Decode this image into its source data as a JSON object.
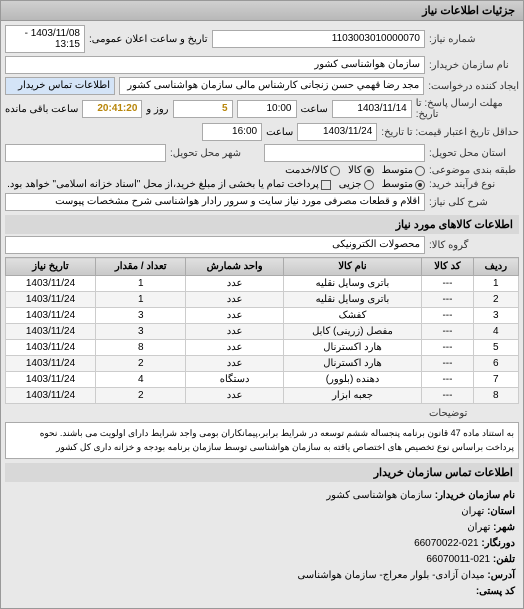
{
  "panel_title": "جزئیات اطلاعات نیاز",
  "header": {
    "request_no_label": "شماره نیاز:",
    "request_no": "1103003010000070",
    "announce_label": "تاریخ و ساعت اعلان عمومی:",
    "announce_value": "1403/11/08 - 13:15",
    "buyer_org_label": "نام سازمان خریدار:",
    "buyer_org": "سازمان هواشناسی کشور",
    "requester_label": "ایجاد کننده درخواست:",
    "requester": "مجد رضا قهمي حسن زنجانی کارشناس مالی سازمان هواشناسی کشور",
    "contact_btn": "اطلاعات تماس خریدار",
    "deadline_send_label": "مهلت ارسال پاسخ: تا تاریخ:",
    "deadline_send_date": "1403/11/14",
    "time_label": "ساعت",
    "deadline_send_time": "10:00",
    "days_label": "روز و",
    "days": "5",
    "remaining_label": "ساعت باقی مانده",
    "remaining": "20:41:20",
    "validity_label": "حداقل تاریخ اعتبار قیمت: تا تاریخ:",
    "validity_date": "1403/11/24",
    "validity_time": "16:00",
    "delivery_state_label": "استان محل تحویل:",
    "delivery_city_label": "شهر محل تحویل:",
    "budget_label": "طبقه بندی موضوعی:",
    "budget_options": [
      "متوسط",
      "کالا",
      "کالا/خدمت"
    ],
    "process_label": "نوع فرآیند خرید:",
    "process_options": [
      "متوسط",
      "جزیی"
    ],
    "payment_note": "پرداخت تمام یا بخشی از مبلغ خرید،از محل \"اسناد خزانه اسلامی\" خواهد بود.",
    "desc_label": "شرح کلی نیاز:",
    "desc": "اقلام و قطعات مصرفی مورد نیاز سایت و سرور رادار هواشناسی شرح مشخصات پیوست"
  },
  "goods": {
    "section": "اطلاعات کالاهای مورد نیاز",
    "group_label": "گروه کالا:",
    "group": "محصولات الکترونیکی",
    "columns": [
      "ردیف",
      "کد کالا",
      "نام کالا",
      "واحد شمارش",
      "تعداد / مقدار",
      "تاریخ نیاز"
    ],
    "rows": [
      [
        "1",
        "---",
        "باتری وسایل نقلیه",
        "عدد",
        "1",
        "1403/11/24"
      ],
      [
        "2",
        "---",
        "باتری وسایل نقلیه",
        "عدد",
        "1",
        "1403/11/24"
      ],
      [
        "3",
        "---",
        "کفشک",
        "عدد",
        "3",
        "1403/11/24"
      ],
      [
        "4",
        "---",
        "مفصل (زرینی) کابل",
        "عدد",
        "3",
        "1403/11/24"
      ],
      [
        "5",
        "---",
        "هارد اکسترنال",
        "عدد",
        "8",
        "1403/11/24"
      ],
      [
        "6",
        "---",
        "هارد اکسترنال",
        "عدد",
        "2",
        "1403/11/24"
      ],
      [
        "7",
        "---",
        "دهنده (بلوور)",
        "دستگاه",
        "4",
        "1403/11/24"
      ],
      [
        "8",
        "---",
        "جعبه ابزار",
        "عدد",
        "2",
        "1403/11/24"
      ]
    ]
  },
  "notes": {
    "label": "توضیحات",
    "text": "به استناد ماده 47 قانون برنامه پنجساله ششم توسعه در شرایط برابر،پیمانکاران بومی واجد شرایط دارای اولویت می باشند. نحوه پرداخت براساس نوع تخصیص های اختصاص یافته به سازمان هواشناسی توسط سازمان برنامه بودجه و خزانه داری کل کشور"
  },
  "contact": {
    "section": "اطلاعات تماس سازمان خریدار",
    "org_label": "نام سازمان خریدار:",
    "org": "سازمان هواشناسی کشور",
    "state_label": "استان:",
    "state": "تهران",
    "city_label": "شهر:",
    "city": "تهران",
    "fax_label": "دورنگار:",
    "fax": "021-66070022",
    "tel_label": "تلفن:",
    "tel": "021-66070011",
    "addr_label": "آدرس:",
    "addr": "میدان آزادی- بلوار معراج- سازمان هواشناسی",
    "post_label": "کد پستی:"
  }
}
